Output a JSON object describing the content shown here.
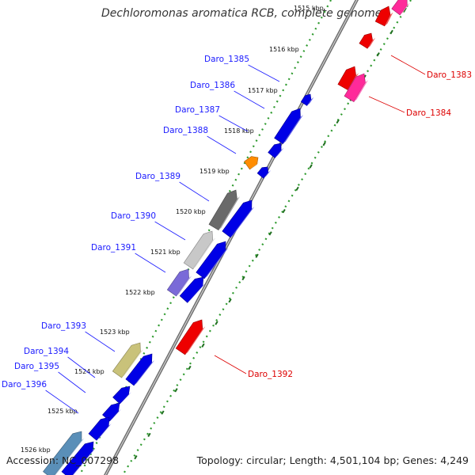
{
  "map": {
    "title": "Dechloromonas aromatica RCB, complete genome",
    "accession": "Accession: NC_007298",
    "summary": "Topology: circular; Length: 4,501,104 bp; Genes: 4,249",
    "colors": {
      "backbone": "#9a9a9a",
      "tick_dotted": "#2e9a2e",
      "forward_label": "#1a1aff",
      "reverse_label": "#dd0000",
      "blue_gene": "#0000e6",
      "red_gene": "#ee0000",
      "pink_gene": "#ff2a9a",
      "orange_gene": "#ff8c00",
      "gray_gene": "#6a6a6a",
      "lightgray_gene": "#c8c8c8",
      "purple_gene": "#7a6ad8",
      "olive_gene": "#c9c27a",
      "steelblue_gene": "#5a8fb8"
    },
    "kbp_ticks": [
      "1515 kbp",
      "1516 kbp",
      "1517 kbp",
      "1518 kbp",
      "1519 kbp",
      "1520 kbp",
      "1521 kbp",
      "1522 kbp",
      "1523 kbp",
      "1524 kbp",
      "1525 kbp",
      "1526 kbp"
    ],
    "forward_labels": [
      "Daro_1385",
      "Daro_1386",
      "Daro_1387",
      "Daro_1388",
      "Daro_1389",
      "Daro_1390",
      "Daro_1391",
      "Daro_1393",
      "Daro_1394",
      "Daro_1395",
      "Daro_1396"
    ],
    "reverse_labels": [
      "Daro_1383",
      "Daro_1384",
      "Daro_1392"
    ]
  }
}
